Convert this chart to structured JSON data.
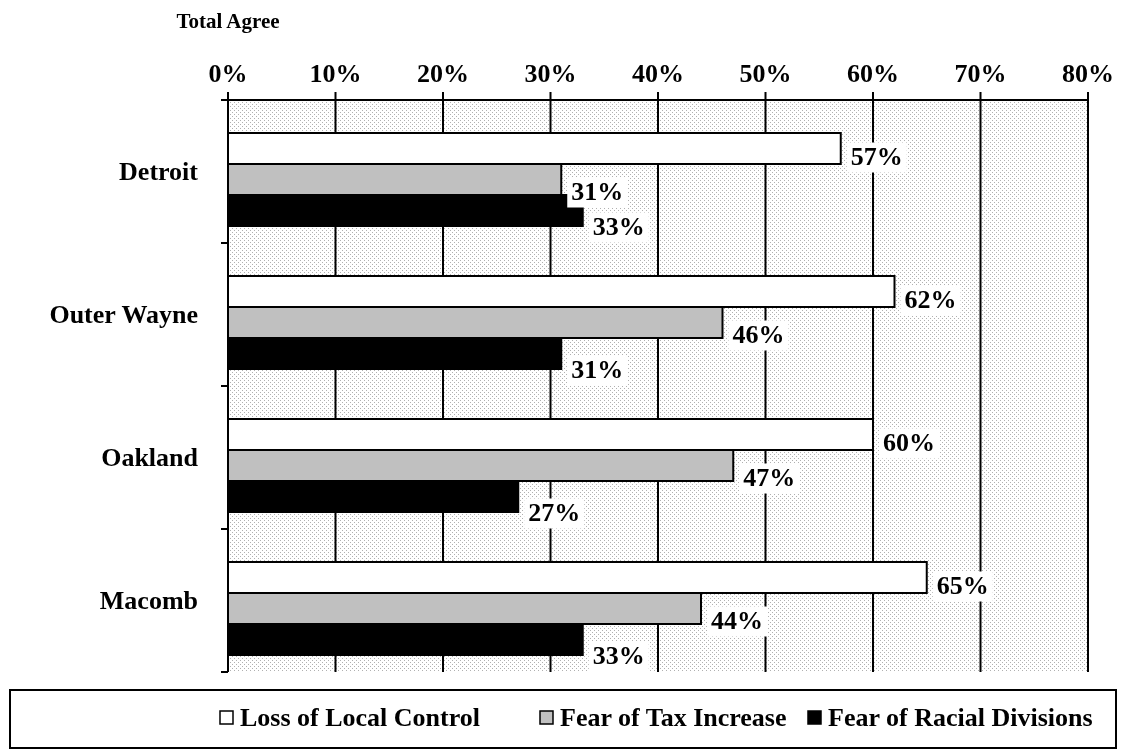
{
  "chart_data": {
    "type": "bar",
    "orientation": "horizontal",
    "title": "Total Agree",
    "categories": [
      "Detroit",
      "Outer Wayne",
      "Oakland",
      "Macomb"
    ],
    "series": [
      {
        "name": "Loss of Local Control",
        "color": "#ffffff",
        "values": [
          57,
          62,
          60,
          65
        ],
        "value_labels": [
          "57%",
          "62%",
          "60%",
          "65%"
        ]
      },
      {
        "name": "Fear of Tax Increase",
        "color": "#c0c0c0",
        "values": [
          31,
          46,
          47,
          44
        ],
        "value_labels": [
          "31%",
          "46%",
          "47%",
          "44%"
        ]
      },
      {
        "name": "Fear of Racial Divisions",
        "color": "#000000",
        "values": [
          33,
          31,
          27,
          33
        ],
        "value_labels": [
          "33%",
          "31%",
          "27%",
          "33%"
        ]
      }
    ],
    "xlim": [
      0,
      80
    ],
    "xticks": [
      {
        "value": 0,
        "label": "0%"
      },
      {
        "value": 10,
        "label": "10%"
      },
      {
        "value": 20,
        "label": "20%"
      },
      {
        "value": 30,
        "label": "30%"
      },
      {
        "value": 40,
        "label": "40%"
      },
      {
        "value": 50,
        "label": "50%"
      },
      {
        "value": 60,
        "label": "60%"
      },
      {
        "value": 70,
        "label": "70%"
      },
      {
        "value": 80,
        "label": "80%"
      }
    ],
    "grid": "x",
    "legend": "bottom"
  }
}
